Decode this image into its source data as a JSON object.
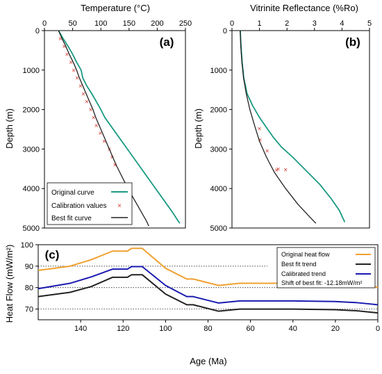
{
  "chart_data": [
    {
      "panel": "(a)",
      "type": "line",
      "title": "Temperature (°C)",
      "xlabel": "Temperature (°C)",
      "ylabel": "Depth (m)",
      "xlim": [
        0,
        250
      ],
      "ylim": [
        0,
        5000
      ],
      "x_ticks": [
        "0",
        "50",
        "100",
        "150",
        "200",
        "250"
      ],
      "y_ticks": [
        "0",
        "1000",
        "2000",
        "3000",
        "4000",
        "5000"
      ],
      "y_inverted": true,
      "x_axis_position": "top",
      "legend": {
        "position": "bottom-left",
        "entries": [
          "Original curve",
          "Calibration values",
          "Best fit curve"
        ]
      },
      "colors": {
        "original": "#1a9a82",
        "calibration": "#d9352b",
        "best_fit": "#222222"
      },
      "series": [
        {
          "name": "Original curve",
          "points": [
            [
              25,
              0
            ],
            [
              33,
              200
            ],
            [
              42,
              400
            ],
            [
              50,
              600
            ],
            [
              57,
              800
            ],
            [
              65,
              1000
            ],
            [
              68,
              1200
            ],
            [
              75,
              1400
            ],
            [
              84,
              1600
            ],
            [
              92,
              1800
            ],
            [
              100,
              2000
            ],
            [
              107,
              2200
            ],
            [
              117,
              2400
            ],
            [
              127,
              2600
            ],
            [
              137,
              2800
            ],
            [
              147,
              3000
            ],
            [
              157,
              3200
            ],
            [
              167,
              3400
            ],
            [
              177,
              3600
            ],
            [
              187,
              3800
            ],
            [
              197,
              4000
            ],
            [
              207,
              4200
            ],
            [
              217,
              4400
            ],
            [
              227,
              4600
            ],
            [
              236,
              4800
            ],
            [
              240,
              4880
            ]
          ]
        },
        {
          "name": "Calibration values",
          "points": [
            [
              28,
              200
            ],
            [
              35,
              400
            ],
            [
              40,
              600
            ],
            [
              47,
              800
            ],
            [
              52,
              1000
            ],
            [
              58,
              1200
            ],
            [
              64,
              1400
            ],
            [
              69,
              1600
            ],
            [
              75,
              1800
            ],
            [
              82,
              2000
            ],
            [
              87,
              2200
            ],
            [
              92,
              2400
            ],
            [
              99,
              2600
            ],
            [
              106,
              2800
            ],
            [
              115,
              3000
            ],
            [
              120,
              3200
            ],
            [
              125,
              3400
            ]
          ]
        },
        {
          "name": "Best fit curve",
          "points": [
            [
              25,
              0
            ],
            [
              31,
              200
            ],
            [
              38,
              400
            ],
            [
              44,
              600
            ],
            [
              51,
              800
            ],
            [
              57,
              1000
            ],
            [
              62,
              1200
            ],
            [
              68,
              1400
            ],
            [
              74,
              1600
            ],
            [
              80,
              1800
            ],
            [
              86,
              2000
            ],
            [
              91,
              2200
            ],
            [
              97,
              2400
            ],
            [
              103,
              2600
            ],
            [
              109,
              2800
            ],
            [
              115,
              3000
            ],
            [
              121,
              3200
            ],
            [
              127,
              3400
            ],
            [
              134,
              3600
            ],
            [
              141,
              3800
            ],
            [
              148,
              4000
            ],
            [
              156,
              4200
            ],
            [
              164,
              4400
            ],
            [
              172,
              4600
            ],
            [
              180,
              4800
            ],
            [
              185,
              4950
            ]
          ]
        }
      ]
    },
    {
      "panel": "(b)",
      "type": "line",
      "title": "Vitrinite Reflectance (%Ro)",
      "xlabel": "Vitrinite Reflectance (%Ro)",
      "ylabel": "Depth (m)",
      "xlim": [
        0,
        5
      ],
      "ylim": [
        0,
        5000
      ],
      "x_ticks": [
        "0",
        "1",
        "2",
        "3",
        "4",
        "5"
      ],
      "y_ticks": [
        "0",
        "1000",
        "2000",
        "3000",
        "4000",
        "5000"
      ],
      "y_inverted": true,
      "x_axis_position": "top",
      "colors": {
        "original": "#1a9a82",
        "calibration": "#d9352b",
        "best_fit": "#222222"
      },
      "series": [
        {
          "name": "Original curve",
          "points": [
            [
              0.3,
              0
            ],
            [
              0.33,
              400
            ],
            [
              0.37,
              800
            ],
            [
              0.43,
              1200
            ],
            [
              0.55,
              1600
            ],
            [
              0.75,
              1900
            ],
            [
              1.0,
              2200
            ],
            [
              1.25,
              2450
            ],
            [
              1.5,
              2700
            ],
            [
              1.8,
              2950
            ],
            [
              2.2,
              3200
            ],
            [
              2.7,
              3550
            ],
            [
              3.2,
              3900
            ],
            [
              3.6,
              4250
            ],
            [
              3.9,
              4550
            ],
            [
              4.1,
              4850
            ]
          ]
        },
        {
          "name": "Calibration values",
          "points": [
            [
              1.0,
              2480
            ],
            [
              1.02,
              2760
            ],
            [
              1.28,
              3050
            ],
            [
              1.62,
              3530
            ],
            [
              1.68,
              3500
            ],
            [
              1.95,
              3520
            ]
          ]
        },
        {
          "name": "Best fit curve",
          "points": [
            [
              0.3,
              0
            ],
            [
              0.32,
              400
            ],
            [
              0.36,
              800
            ],
            [
              0.42,
              1200
            ],
            [
              0.52,
              1600
            ],
            [
              0.65,
              2000
            ],
            [
              0.82,
              2400
            ],
            [
              1.0,
              2800
            ],
            [
              1.25,
              3200
            ],
            [
              1.55,
              3600
            ],
            [
              1.95,
              4000
            ],
            [
              2.4,
              4400
            ],
            [
              2.8,
              4700
            ],
            [
              3.05,
              4880
            ]
          ]
        }
      ]
    },
    {
      "panel": "(c)",
      "type": "line",
      "xlabel": "Age (Ma)",
      "ylabel": "Heat Flow (mW/m²)",
      "xlim": [
        160,
        0
      ],
      "ylim": [
        65,
        100
      ],
      "x_ticks": [
        "140",
        "120",
        "100",
        "80",
        "60",
        "40",
        "20",
        "0"
      ],
      "y_ticks": [
        "70",
        "80",
        "90",
        "100"
      ],
      "dotted_gridlines_y": [
        70,
        80,
        90
      ],
      "legend": {
        "position": "top-right",
        "entries": [
          "Original heat flow",
          "Best fit trend",
          "Calibrated trend",
          "Shift of best fit: -12.18mW/m²"
        ]
      },
      "colors": {
        "original": "#f0a030",
        "best_fit": "#222222",
        "calibrated": "#1a1ab0"
      },
      "series": [
        {
          "name": "Original heat flow",
          "points": [
            [
              160,
              88
            ],
            [
              145,
              90
            ],
            [
              135,
              93
            ],
            [
              125,
              97
            ],
            [
              118,
              97
            ],
            [
              116,
              98.3
            ],
            [
              111,
              98.3
            ],
            [
              100,
              89
            ],
            [
              90,
              84
            ],
            [
              87,
              84
            ],
            [
              75,
              81
            ],
            [
              65,
              82
            ],
            [
              40,
              82
            ],
            [
              20,
              81.7
            ],
            [
              10,
              81.2
            ],
            [
              0,
              80.2
            ]
          ]
        },
        {
          "name": "Best fit trend",
          "points": [
            [
              160,
              75.8
            ],
            [
              145,
              77.8
            ],
            [
              135,
              80.5
            ],
            [
              125,
              84.8
            ],
            [
              118,
              84.8
            ],
            [
              116,
              86
            ],
            [
              111,
              86
            ],
            [
              100,
              77
            ],
            [
              90,
              72
            ],
            [
              87,
              72
            ],
            [
              75,
              69
            ],
            [
              65,
              70
            ],
            [
              40,
              70
            ],
            [
              20,
              69.7
            ],
            [
              10,
              69.2
            ],
            [
              0,
              68.2
            ]
          ]
        },
        {
          "name": "Calibrated trend",
          "points": [
            [
              160,
              79.5
            ],
            [
              145,
              82
            ],
            [
              135,
              85
            ],
            [
              125,
              88.6
            ],
            [
              118,
              88.6
            ],
            [
              116,
              89.8
            ],
            [
              111,
              89.8
            ],
            [
              100,
              81
            ],
            [
              90,
              75.8
            ],
            [
              87,
              75.8
            ],
            [
              75,
              72.8
            ],
            [
              65,
              73.8
            ],
            [
              40,
              73.8
            ],
            [
              20,
              73.5
            ],
            [
              10,
              73
            ],
            [
              0,
              72
            ]
          ]
        }
      ]
    }
  ]
}
